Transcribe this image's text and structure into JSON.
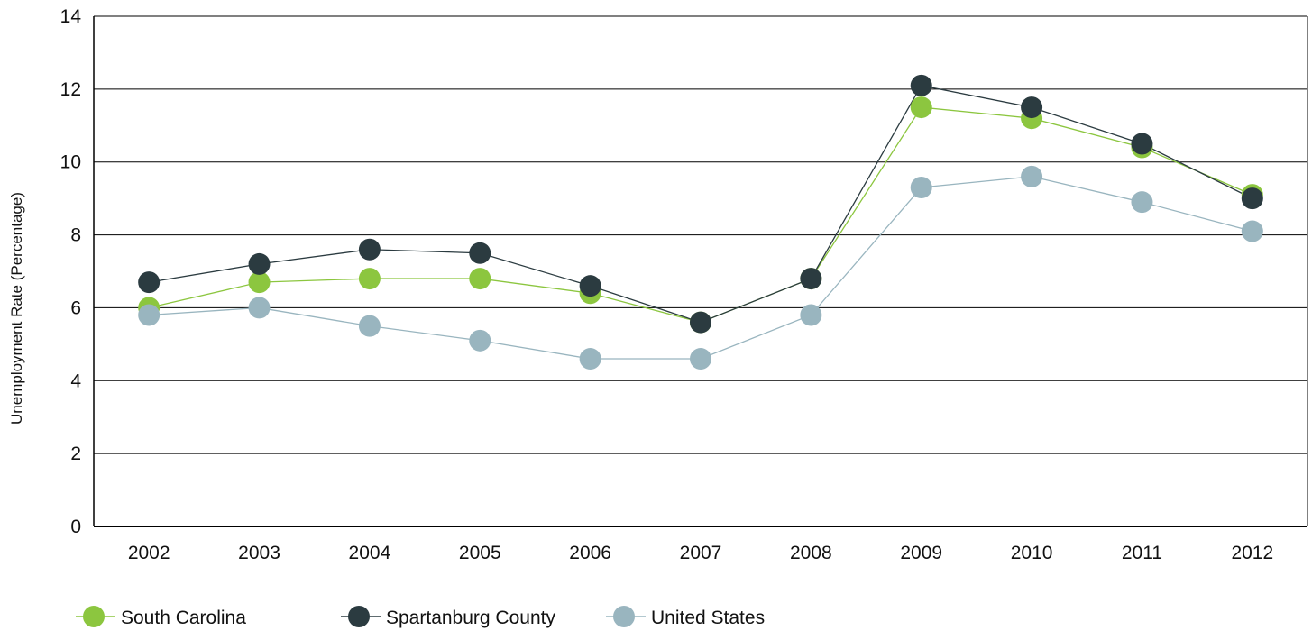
{
  "chart_data": {
    "type": "line",
    "title": "",
    "xlabel": "",
    "ylabel": "Unemployment Rate (Percentage)",
    "ylim": [
      0,
      14
    ],
    "yticks": [
      0,
      2,
      4,
      6,
      8,
      10,
      12,
      14
    ],
    "grid": true,
    "legend_position": "bottom-left",
    "categories": [
      "2002",
      "2003",
      "2004",
      "2005",
      "2006",
      "2007",
      "2008",
      "2009",
      "2010",
      "2011",
      "2012"
    ],
    "series": [
      {
        "name": "South Carolina",
        "color": "#8cc63f",
        "values": [
          6.0,
          6.7,
          6.8,
          6.8,
          6.4,
          5.6,
          6.8,
          11.5,
          11.2,
          10.4,
          9.1
        ]
      },
      {
        "name": "Spartanburg County",
        "color": "#2b3b40",
        "values": [
          6.7,
          7.2,
          7.6,
          7.5,
          6.6,
          5.6,
          6.8,
          12.1,
          11.5,
          10.5,
          9.0
        ]
      },
      {
        "name": "United States",
        "color": "#99b5bf",
        "values": [
          5.8,
          6.0,
          5.5,
          5.1,
          4.6,
          4.6,
          5.8,
          9.3,
          9.6,
          8.9,
          8.1
        ]
      }
    ]
  }
}
